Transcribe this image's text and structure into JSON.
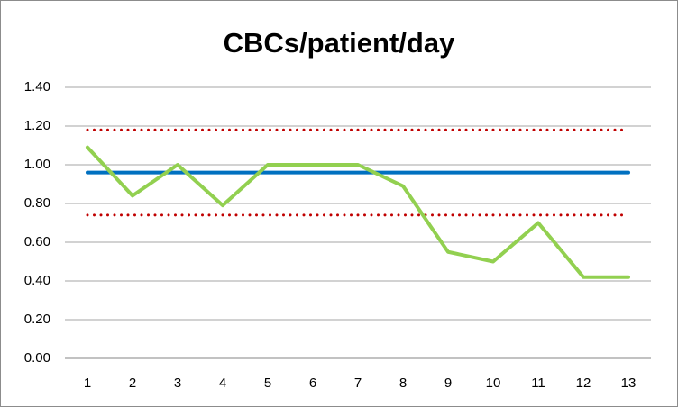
{
  "chart_data": {
    "type": "line",
    "title": "CBCs/patient/day",
    "categories": [
      "1",
      "2",
      "3",
      "4",
      "5",
      "6",
      "7",
      "8",
      "9",
      "10",
      "11",
      "12",
      "13"
    ],
    "series": [
      {
        "color": "#c00000",
        "dash": "dotted",
        "values": [
          1.18,
          1.18,
          1.18,
          1.18,
          1.18,
          1.18,
          1.18,
          1.18,
          1.18,
          1.18,
          1.18,
          1.18,
          1.18
        ]
      },
      {
        "color": "#c00000",
        "dash": "dotted",
        "values": [
          0.74,
          0.74,
          0.74,
          0.74,
          0.74,
          0.74,
          0.74,
          0.74,
          0.74,
          0.74,
          0.74,
          0.74,
          0.74
        ]
      },
      {
        "color": "#0070c0",
        "dash": "solid",
        "values": [
          0.96,
          0.96,
          0.96,
          0.96,
          0.96,
          0.96,
          0.96,
          0.96,
          0.96,
          0.96,
          0.96,
          0.96,
          0.96
        ]
      },
      {
        "color": "#92d050",
        "dash": "solid",
        "values": [
          1.09,
          0.84,
          1.0,
          0.79,
          1.0,
          1.0,
          1.0,
          0.89,
          0.55,
          0.5,
          0.7,
          0.42,
          0.42
        ]
      }
    ],
    "ylim": [
      0,
      1.4
    ],
    "yticks": [
      {
        "value": 0,
        "label": "0.00"
      },
      {
        "value": 0.2,
        "label": "0.20"
      },
      {
        "value": 0.4,
        "label": "0.40"
      },
      {
        "value": 0.6,
        "label": "0.60"
      },
      {
        "value": 0.8,
        "label": "0.80"
      },
      {
        "value": 1,
        "label": "1.00"
      },
      {
        "value": 1.2,
        "label": "1.20"
      },
      {
        "value": 1.4,
        "label": "1.40"
      }
    ],
    "grid": true
  }
}
